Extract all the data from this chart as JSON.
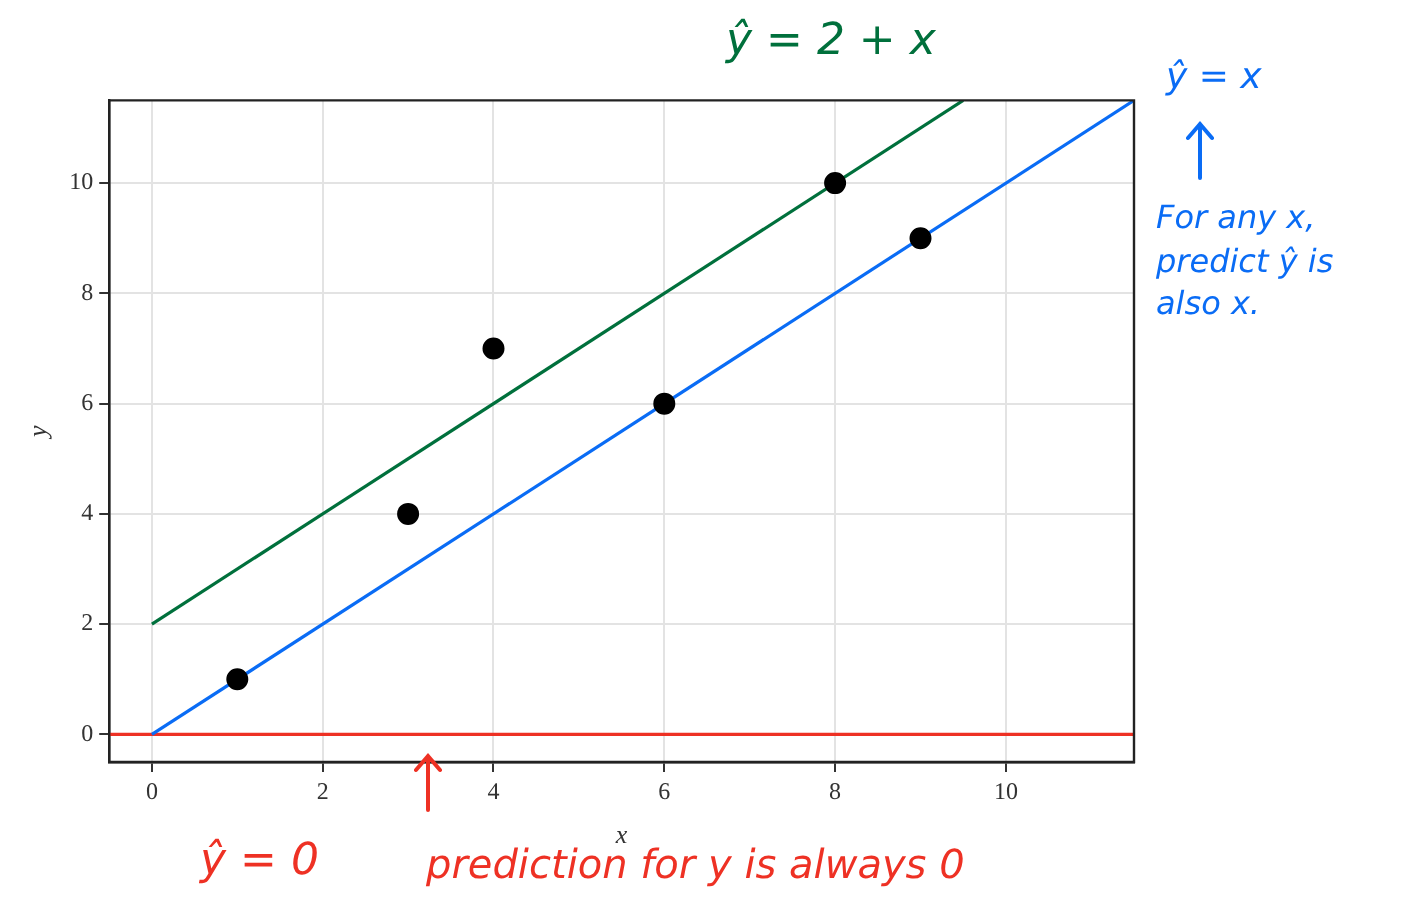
{
  "chart_data": {
    "type": "scatter",
    "xlabel": "x",
    "ylabel": "y",
    "xlim": [
      -0.5,
      11.5
    ],
    "ylim": [
      -0.5,
      11.5
    ],
    "xticks": [
      0,
      2,
      4,
      6,
      8,
      10
    ],
    "yticks": [
      0,
      2,
      4,
      6,
      8,
      10
    ],
    "grid": true,
    "marker": "circle",
    "line_style": "solid",
    "series": [
      {
        "type": "scatter",
        "color": "#000000",
        "x": [
          1,
          3,
          4,
          6,
          8,
          9
        ],
        "values": [
          1,
          4,
          7,
          6,
          10,
          9
        ]
      },
      {
        "type": "line",
        "color": "#00703c",
        "marker": "none",
        "x": [
          0,
          9.5
        ],
        "values": [
          2,
          11.5
        ]
      },
      {
        "type": "line",
        "color": "#0a6cf5",
        "marker": "none",
        "x": [
          0,
          11.5
        ],
        "values": [
          0,
          11.5
        ]
      },
      {
        "type": "line",
        "color": "#ee3124",
        "marker": "none",
        "x": [
          -0.5,
          11.5
        ],
        "values": [
          0,
          0
        ]
      }
    ],
    "annotations": [
      "ŷ = 2 + x",
      "ŷ = x",
      "For any x, predict ŷ is also x.",
      "ŷ = 0",
      "prediction for y is always 0"
    ]
  }
}
